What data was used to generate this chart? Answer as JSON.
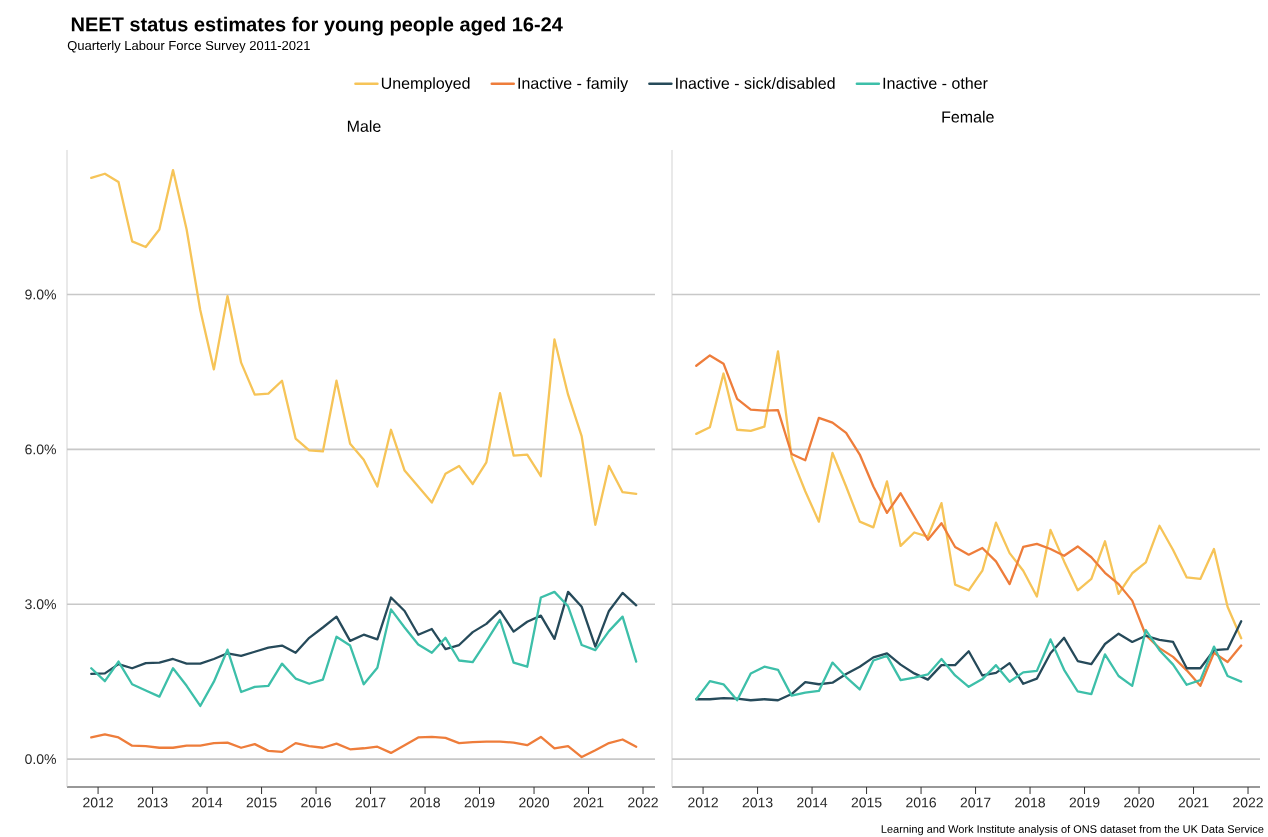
{
  "chart_data": [
    {
      "type": "line",
      "title": "NEET status estimates for young people aged 16-24",
      "subtitle": "Quarterly Labour Force Survey 2011-2021",
      "annotations": [
        "Male",
        "Learning and Work Institute analysis of ONS dataset from the UK Data Service"
      ],
      "x": [
        2011.875,
        2012.125,
        2012.375,
        2012.625,
        2012.875,
        2013.125,
        2013.375,
        2013.625,
        2013.875,
        2014.125,
        2014.375,
        2014.625,
        2014.875,
        2015.125,
        2015.375,
        2015.625,
        2015.875,
        2016.125,
        2016.375,
        2016.625,
        2016.875,
        2017.125,
        2017.375,
        2017.625,
        2017.875,
        2018.125,
        2018.375,
        2018.625,
        2018.875,
        2019.125,
        2019.375,
        2019.625,
        2019.875,
        2020.125,
        2020.375,
        2020.625,
        2020.875,
        2021.125,
        2021.375,
        2021.625,
        2021.875
      ],
      "xlim": [
        2011.43,
        2022.22
      ],
      "xticks": [
        2012,
        2013,
        2014,
        2015,
        2016,
        2017,
        2018,
        2019,
        2020,
        2021,
        2022
      ],
      "ylim": [
        -0.54,
        11.8
      ],
      "yticks": [
        {
          "value": 0,
          "label": "0.0%"
        },
        {
          "value": 3,
          "label": "3.0%"
        },
        {
          "value": 6,
          "label": "6.0%"
        },
        {
          "value": 9,
          "label": "9.0%"
        }
      ],
      "grid": "y",
      "legend": "top",
      "line_style": "solid",
      "series": [
        {
          "name": "Unemployed",
          "color": "#f6c458",
          "values": [
            11.26,
            11.34,
            11.18,
            10.03,
            9.92,
            10.26,
            11.41,
            10.26,
            8.7,
            7.55,
            8.97,
            7.68,
            7.06,
            7.08,
            7.33,
            6.21,
            5.98,
            5.96,
            7.33,
            6.11,
            5.8,
            5.28,
            6.38,
            5.59,
            5.28,
            4.97,
            5.53,
            5.68,
            5.33,
            5.75,
            7.09,
            5.88,
            5.9,
            5.48,
            8.13,
            7.06,
            6.25,
            4.54,
            5.68,
            5.17,
            5.14
          ]
        },
        {
          "name": "Inactive - family",
          "color": "#ee7d3b",
          "values": [
            0.42,
            0.48,
            0.42,
            0.26,
            0.25,
            0.22,
            0.22,
            0.26,
            0.26,
            0.31,
            0.32,
            0.22,
            0.29,
            0.16,
            0.14,
            0.31,
            0.25,
            0.22,
            0.3,
            0.19,
            0.21,
            0.24,
            0.12,
            0.27,
            0.42,
            0.43,
            0.41,
            0.31,
            0.33,
            0.34,
            0.34,
            0.32,
            0.27,
            0.43,
            0.21,
            0.25,
            0.04,
            0.17,
            0.31,
            0.38,
            0.24
          ]
        },
        {
          "name": "Inactive - sick/disabled",
          "color": "#264a5a",
          "values": [
            1.65,
            1.66,
            1.84,
            1.76,
            1.86,
            1.87,
            1.94,
            1.85,
            1.85,
            1.94,
            2.05,
            2.0,
            2.08,
            2.16,
            2.2,
            2.06,
            2.35,
            2.55,
            2.76,
            2.29,
            2.41,
            2.32,
            3.13,
            2.87,
            2.41,
            2.52,
            2.13,
            2.21,
            2.46,
            2.62,
            2.87,
            2.47,
            2.66,
            2.78,
            2.33,
            3.24,
            2.95,
            2.18,
            2.87,
            3.22,
            2.98
          ]
        },
        {
          "name": "Inactive - other",
          "color": "#3dbfa9",
          "values": [
            1.76,
            1.51,
            1.89,
            1.45,
            1.33,
            1.21,
            1.76,
            1.42,
            1.03,
            1.5,
            2.12,
            1.3,
            1.4,
            1.42,
            1.85,
            1.56,
            1.46,
            1.54,
            2.37,
            2.2,
            1.45,
            1.77,
            2.9,
            2.55,
            2.22,
            2.06,
            2.35,
            1.91,
            1.88,
            2.28,
            2.7,
            1.87,
            1.79,
            3.13,
            3.24,
            2.96,
            2.21,
            2.11,
            2.48,
            2.76,
            1.89
          ]
        }
      ]
    },
    {
      "type": "line",
      "title": "Female",
      "x": [
        2011.875,
        2012.125,
        2012.375,
        2012.625,
        2012.875,
        2013.125,
        2013.375,
        2013.625,
        2013.875,
        2014.125,
        2014.375,
        2014.625,
        2014.875,
        2015.125,
        2015.375,
        2015.625,
        2015.875,
        2016.125,
        2016.375,
        2016.625,
        2016.875,
        2017.125,
        2017.375,
        2017.625,
        2017.875,
        2018.125,
        2018.375,
        2018.625,
        2018.875,
        2019.125,
        2019.375,
        2019.625,
        2019.875,
        2020.125,
        2020.375,
        2020.625,
        2020.875,
        2021.125,
        2021.375,
        2021.625,
        2021.875
      ],
      "xlim": [
        2011.43,
        2022.22
      ],
      "xticks": [
        2012,
        2013,
        2014,
        2015,
        2016,
        2017,
        2018,
        2019,
        2020,
        2021,
        2022
      ],
      "ylim": [
        -0.54,
        11.8
      ],
      "yticks": [
        {
          "value": 0,
          "label": null
        },
        {
          "value": 3,
          "label": null
        },
        {
          "value": 6,
          "label": null
        },
        {
          "value": 9,
          "label": null
        }
      ],
      "grid": "y",
      "tick_labels": "x",
      "line_style": "solid",
      "series": [
        {
          "color": "#f6c458",
          "values": [
            6.3,
            6.43,
            7.47,
            6.38,
            6.36,
            6.44,
            7.9,
            5.85,
            5.19,
            4.6,
            5.93,
            5.28,
            4.6,
            4.49,
            5.38,
            4.13,
            4.39,
            4.31,
            4.96,
            3.38,
            3.27,
            3.65,
            4.58,
            3.99,
            3.65,
            3.15,
            4.44,
            3.83,
            3.27,
            3.49,
            4.22,
            3.2,
            3.6,
            3.81,
            4.52,
            4.05,
            3.52,
            3.49,
            4.07,
            2.95,
            2.34
          ]
        },
        {
          "color": "#ee7d3b",
          "values": [
            7.62,
            7.82,
            7.66,
            6.98,
            6.77,
            6.75,
            6.76,
            5.91,
            5.79,
            6.61,
            6.52,
            6.32,
            5.9,
            5.28,
            4.77,
            5.15,
            4.7,
            4.25,
            4.57,
            4.11,
            3.96,
            4.09,
            3.83,
            3.39,
            4.11,
            4.17,
            4.07,
            3.94,
            4.12,
            3.91,
            3.61,
            3.39,
            3.07,
            2.4,
            2.15,
            1.98,
            1.72,
            1.42,
            2.06,
            1.88,
            2.2
          ]
        },
        {
          "color": "#264a5a",
          "values": [
            1.16,
            1.16,
            1.18,
            1.17,
            1.14,
            1.16,
            1.14,
            1.26,
            1.49,
            1.45,
            1.48,
            1.65,
            1.79,
            1.97,
            2.05,
            1.83,
            1.66,
            1.54,
            1.82,
            1.82,
            2.09,
            1.62,
            1.67,
            1.86,
            1.46,
            1.56,
            2.05,
            2.35,
            1.9,
            1.84,
            2.23,
            2.43,
            2.27,
            2.39,
            2.31,
            2.27,
            1.76,
            1.76,
            2.11,
            2.13,
            2.67
          ]
        },
        {
          "color": "#3dbfa9",
          "values": [
            1.16,
            1.51,
            1.45,
            1.14,
            1.66,
            1.79,
            1.73,
            1.23,
            1.29,
            1.32,
            1.87,
            1.59,
            1.35,
            1.91,
            2.0,
            1.53,
            1.58,
            1.64,
            1.94,
            1.62,
            1.4,
            1.55,
            1.82,
            1.5,
            1.68,
            1.71,
            2.32,
            1.73,
            1.31,
            1.26,
            2.03,
            1.61,
            1.42,
            2.5,
            2.11,
            1.83,
            1.44,
            1.53,
            2.18,
            1.61,
            1.5
          ]
        }
      ]
    }
  ]
}
